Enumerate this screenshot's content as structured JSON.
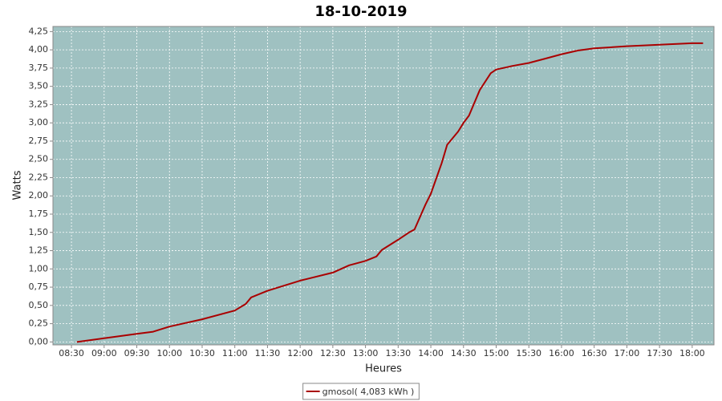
{
  "chart_data": {
    "type": "line",
    "title": "18-10-2019",
    "x_label": "Heures",
    "y_label": "Watts",
    "x": [
      "08:35",
      "09:00",
      "09:30",
      "09:45",
      "10:00",
      "10:30",
      "11:00",
      "11:10",
      "11:15",
      "11:30",
      "12:00",
      "12:30",
      "12:45",
      "13:00",
      "13:10",
      "13:15",
      "13:30",
      "13:40",
      "13:45",
      "13:55",
      "14:00",
      "14:10",
      "14:15",
      "14:25",
      "14:30",
      "14:35",
      "14:45",
      "14:55",
      "15:00",
      "15:15",
      "15:30",
      "15:45",
      "16:00",
      "16:15",
      "16:30",
      "17:00",
      "17:30",
      "18:00",
      "18:10"
    ],
    "series": [
      {
        "name": "gmosol( 4,083 kWh )",
        "color": "#aa0000",
        "values": [
          0.0,
          0.05,
          0.11,
          0.14,
          0.21,
          0.31,
          0.43,
          0.52,
          0.61,
          0.7,
          0.84,
          0.95,
          1.05,
          1.11,
          1.17,
          1.26,
          1.4,
          1.5,
          1.54,
          1.88,
          2.03,
          2.45,
          2.7,
          2.88,
          3.0,
          3.1,
          3.45,
          3.68,
          3.73,
          3.78,
          3.82,
          3.88,
          3.94,
          3.99,
          4.02,
          4.05,
          4.07,
          4.09,
          4.09
        ]
      }
    ],
    "xlim": [
      "08:13",
      "18:20"
    ],
    "xticks": [
      "08:30",
      "09:00",
      "09:30",
      "10:00",
      "10:30",
      "11:00",
      "11:30",
      "12:00",
      "12:30",
      "13:00",
      "13:30",
      "14:00",
      "14:30",
      "15:00",
      "15:30",
      "16:00",
      "16:30",
      "17:00",
      "17:30",
      "18:00"
    ],
    "ylim": [
      -0.04,
      4.32
    ],
    "yticks": [
      {
        "value": 0,
        "label": "0,00"
      },
      {
        "value": 0.25,
        "label": "0,25"
      },
      {
        "value": 0.5,
        "label": "0,50"
      },
      {
        "value": 0.75,
        "label": "0,75"
      },
      {
        "value": 1,
        "label": "1,00"
      },
      {
        "value": 1.25,
        "label": "1,25"
      },
      {
        "value": 1.5,
        "label": "1,50"
      },
      {
        "value": 1.75,
        "label": "1,75"
      },
      {
        "value": 2,
        "label": "2,00"
      },
      {
        "value": 2.25,
        "label": "2,25"
      },
      {
        "value": 2.5,
        "label": "2,50"
      },
      {
        "value": 2.75,
        "label": "2,75"
      },
      {
        "value": 3,
        "label": "3,00"
      },
      {
        "value": 3.25,
        "label": "3,25"
      },
      {
        "value": 3.5,
        "label": "3,50"
      },
      {
        "value": 3.75,
        "label": "3,75"
      },
      {
        "value": 4,
        "label": "4,00"
      },
      {
        "value": 4.25,
        "label": "4,25"
      }
    ],
    "grid": true,
    "plot_background": "#9fc1c1",
    "legend": "bottom"
  }
}
